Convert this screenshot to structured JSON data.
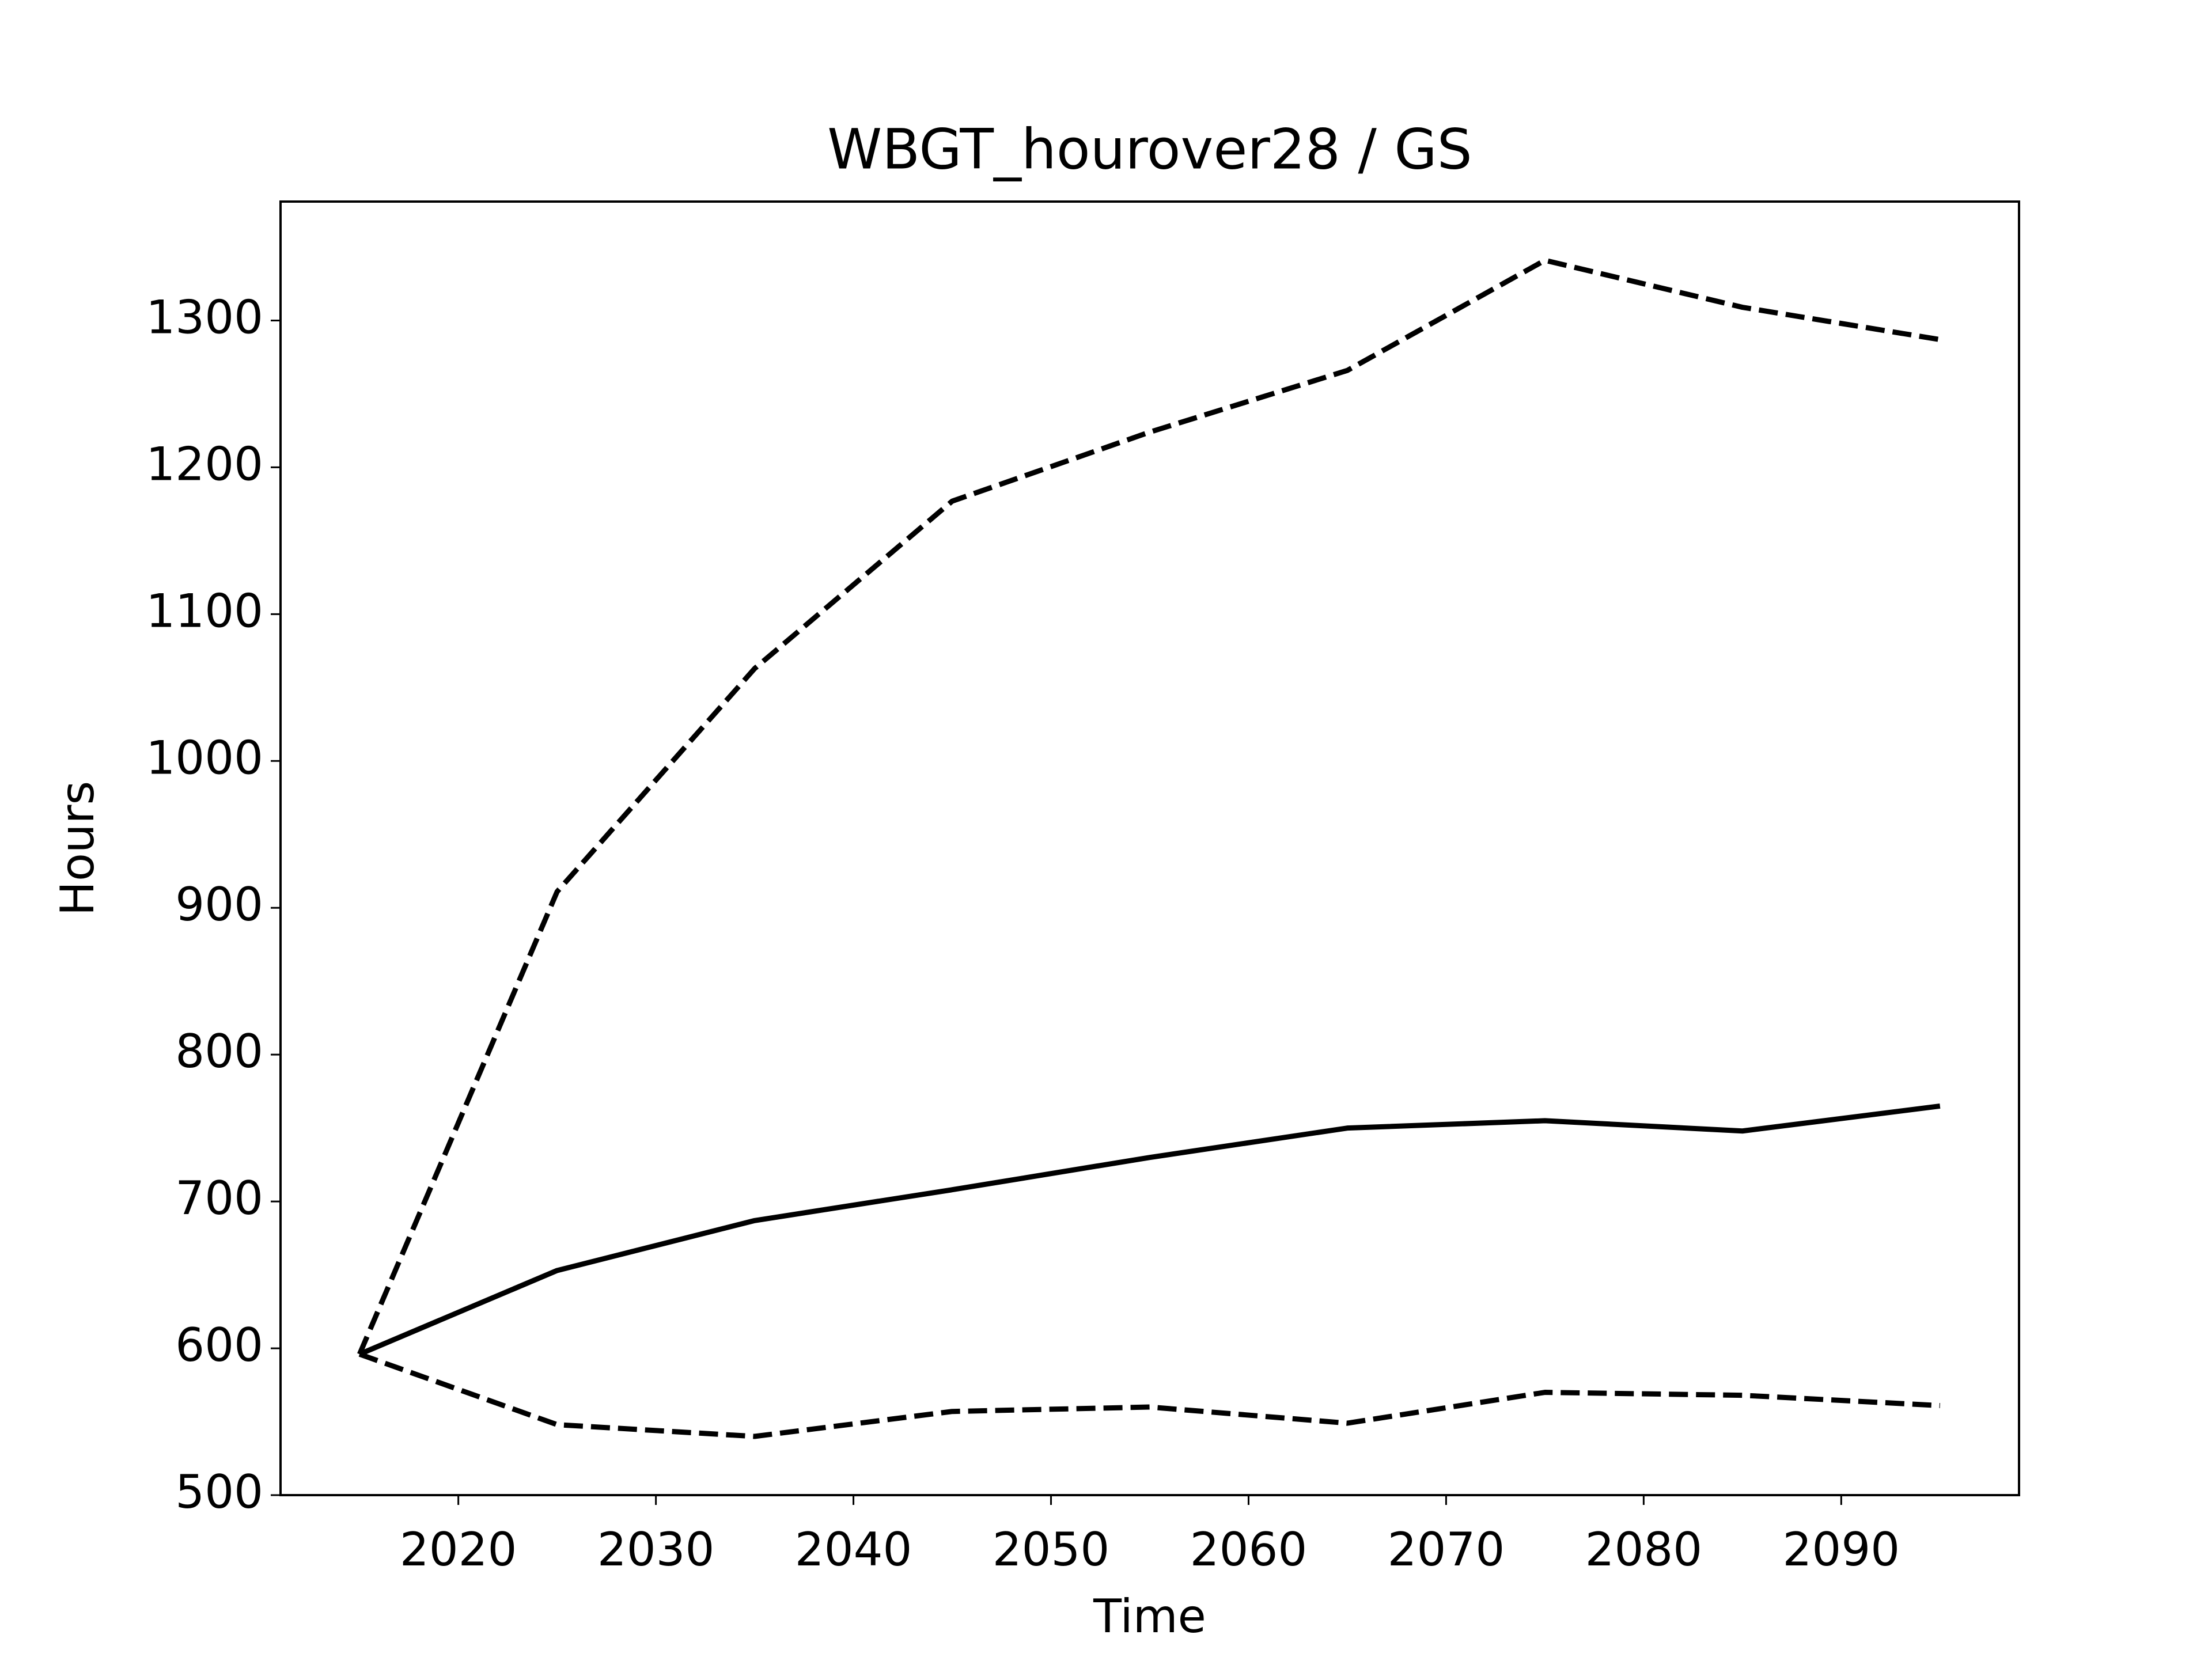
{
  "chart_data": {
    "type": "line",
    "title": "WBGT_hourover28 / GS",
    "xlabel": "Time",
    "ylabel": "Hours",
    "x": [
      2015,
      2025,
      2035,
      2045,
      2055,
      2065,
      2075,
      2085,
      2095
    ],
    "series": [
      {
        "color": "#000000",
        "style": "solid",
        "values": [
          596,
          653,
          687,
          708,
          730,
          750,
          755,
          748,
          765
        ]
      },
      {
        "color": "#000000",
        "style": "dashed",
        "values": [
          596,
          911,
          1063,
          1177,
          1224,
          1266,
          1341,
          1309,
          1287
        ]
      },
      {
        "color": "#000000",
        "style": "dashed",
        "values": [
          596,
          548,
          540,
          557,
          560,
          549,
          570,
          568,
          561
        ]
      }
    ],
    "xlim": [
      2011,
      2099
    ],
    "ylim": [
      500,
      1381
    ],
    "xticks": [
      2020,
      2030,
      2040,
      2050,
      2060,
      2070,
      2080,
      2090
    ],
    "yticks": [
      500,
      600,
      700,
      800,
      900,
      1000,
      1100,
      1200,
      1300
    ],
    "grid": false
  }
}
